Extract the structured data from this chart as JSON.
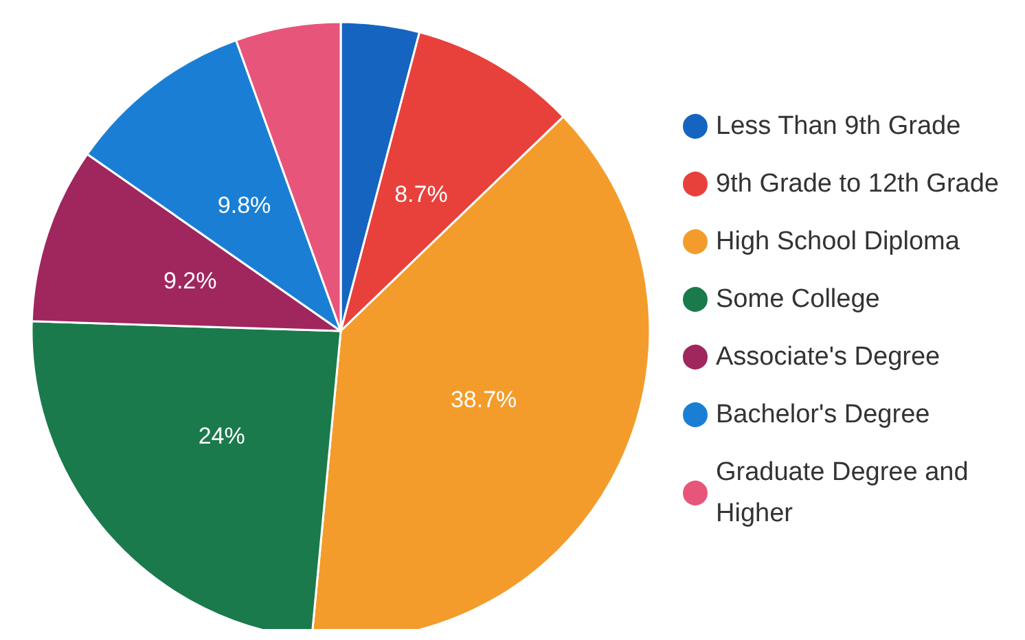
{
  "chart_data": {
    "type": "pie",
    "categories": [
      "Less Than 9th Grade",
      "9th Grade to 12th Grade",
      "High School Diploma",
      "Some College",
      "Associate's Degree",
      "Bachelor's Degree",
      "Graduate Degree and Higher"
    ],
    "values": [
      4.1,
      8.7,
      38.7,
      24,
      9.2,
      9.8,
      5.5
    ],
    "value_labels": [
      null,
      "8.7%",
      "38.7%",
      "24%",
      "9.2%",
      "9.8%",
      null
    ],
    "colors": [
      "#1565c0",
      "#e8413c",
      "#f39c2b",
      "#1a7a4c",
      "#a0265e",
      "#1a7fd4",
      "#e8557a"
    ],
    "legend": "right"
  }
}
